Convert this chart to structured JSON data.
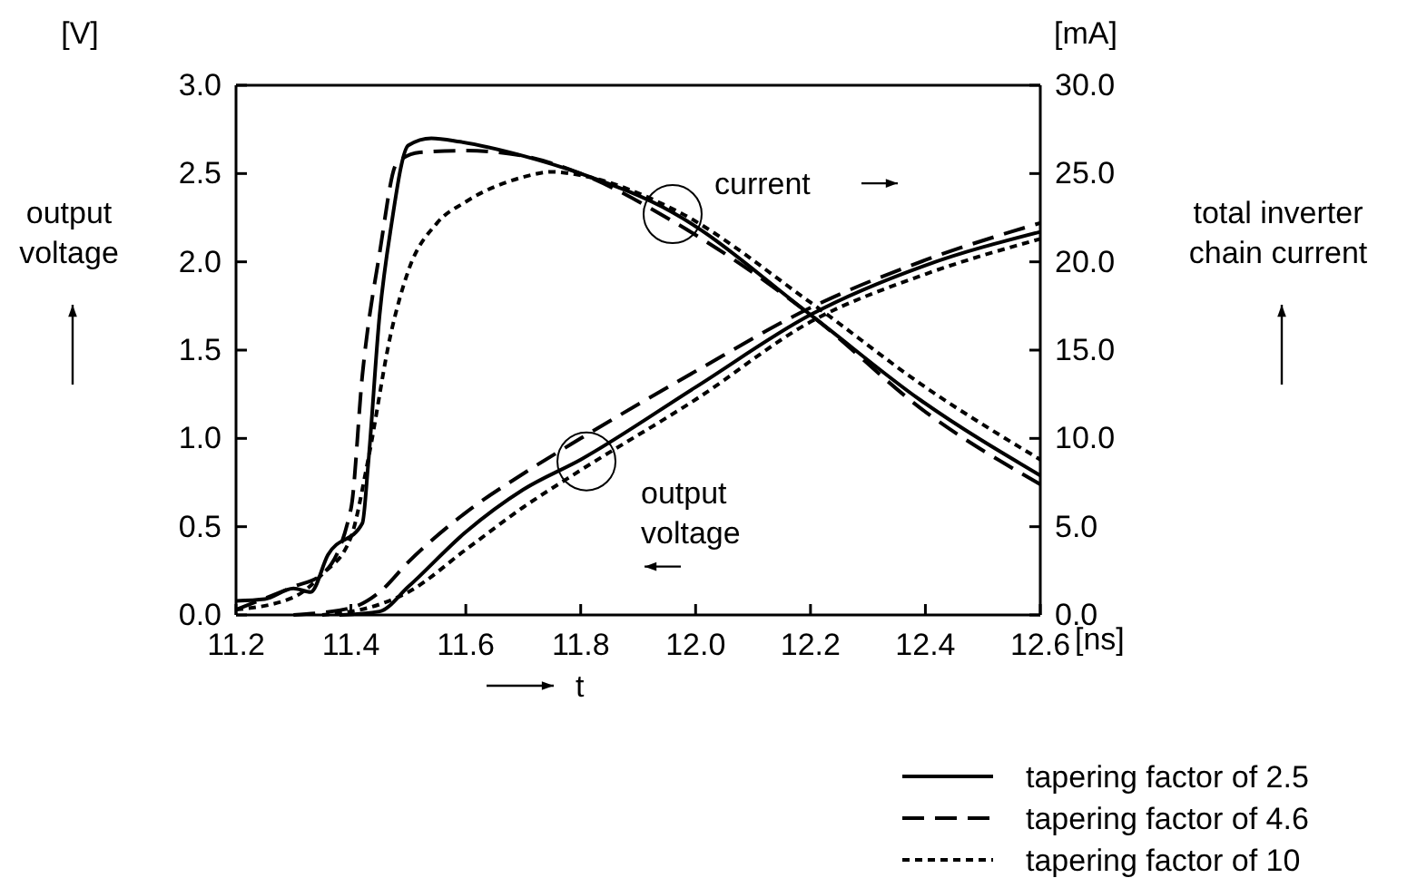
{
  "chart_data": {
    "type": "line",
    "xlabel": "t",
    "ylabel": "output voltage",
    "y2label": "total inverter chain current",
    "xlim": [
      11.2,
      12.6
    ],
    "xticks": [
      {
        "value": 11.2,
        "label": "11.2"
      },
      {
        "value": 11.4,
        "label": "11.4"
      },
      {
        "value": 11.6,
        "label": "11.6"
      },
      {
        "value": 11.8,
        "label": "11.8"
      },
      {
        "value": 12.0,
        "label": "12.0"
      },
      {
        "value": 12.2,
        "label": "12.2"
      },
      {
        "value": 12.4,
        "label": "12.4"
      },
      {
        "value": 12.6,
        "label": "12.6"
      }
    ],
    "ylim": [
      0,
      3
    ],
    "yticks": [
      {
        "value": 0,
        "label": "0.0"
      },
      {
        "value": 0.5,
        "label": "0.5"
      },
      {
        "value": 1,
        "label": "1.0"
      },
      {
        "value": 1.5,
        "label": "1.5"
      },
      {
        "value": 2,
        "label": "2.0"
      },
      {
        "value": 2.5,
        "label": "2.5"
      },
      {
        "value": 3,
        "label": "3.0"
      }
    ],
    "y2lim": [
      0,
      30
    ],
    "y2ticks": [
      {
        "value": 0,
        "label": "0.0"
      },
      {
        "value": 5,
        "label": "5.0"
      },
      {
        "value": 10,
        "label": "10.0"
      },
      {
        "value": 15,
        "label": "15.0"
      },
      {
        "value": 20,
        "label": "20.0"
      },
      {
        "value": 25,
        "label": "25.0"
      },
      {
        "value": 30,
        "label": "30.0"
      }
    ],
    "grid": false,
    "legend": "bottom right",
    "marker": "none",
    "annotations": [
      "[V]",
      "[mA]",
      "[ns]",
      {
        "text": "current",
        "x": 11.96,
        "y": 2.27
      },
      {
        "text": "output voltage",
        "x": 11.81,
        "y": 0.87
      }
    ],
    "series": [
      {
        "name": "tapering factor of 2.5",
        "color": "#000000",
        "line_style": "solid",
        "x": [
          11.38,
          11.45,
          11.5,
          11.6,
          11.7,
          11.8,
          12.0,
          12.2,
          12.4,
          12.6
        ],
        "values": [
          0,
          0.02,
          0.16,
          0.47,
          0.71,
          0.88,
          1.29,
          1.7,
          1.98,
          2.17
        ]
      },
      {
        "name": "tapering factor of 4.6",
        "color": "#000000",
        "line_style": "dashed",
        "x": [
          11.3,
          11.4,
          11.45,
          11.5,
          11.6,
          11.7,
          11.8,
          12.0,
          12.2,
          12.4,
          12.6
        ],
        "values": [
          0,
          0.04,
          0.13,
          0.3,
          0.58,
          0.8,
          1.0,
          1.38,
          1.74,
          2.01,
          2.22
        ]
      },
      {
        "name": "tapering factor of 10",
        "color": "#000000",
        "line_style": "dotted",
        "x": [
          11.35,
          11.45,
          11.5,
          11.6,
          11.7,
          11.8,
          12.0,
          12.2,
          12.4,
          12.6
        ],
        "values": [
          0,
          0.06,
          0.13,
          0.37,
          0.61,
          0.82,
          1.22,
          1.66,
          1.93,
          2.13
        ]
      },
      {
        "color": "#000000",
        "line_style": "solid",
        "axis": "y2",
        "x": [
          11.2,
          11.25,
          11.3,
          11.33,
          11.36,
          11.42,
          11.43,
          11.45,
          11.47,
          11.5,
          11.54,
          11.59,
          11.7,
          11.8,
          11.96,
          12.2,
          12.39,
          12.6
        ],
        "values": [
          0.8,
          0.9,
          1.5,
          1.3,
          3.4,
          5.2,
          8.5,
          17,
          22,
          26.6,
          27,
          26.8,
          26,
          25,
          22.8,
          17,
          12.2,
          7.9
        ]
      },
      {
        "color": "#000000",
        "line_style": "dashed",
        "axis": "y2",
        "x": [
          11.2,
          11.3,
          11.35,
          11.4,
          11.42,
          11.45,
          11.48,
          11.52,
          11.6,
          11.7,
          11.8,
          11.96,
          12.2,
          12.4,
          12.6
        ],
        "values": [
          0.3,
          1.6,
          2.3,
          6,
          13.6,
          20.5,
          25.6,
          26.2,
          26.3,
          26,
          25,
          22.3,
          17,
          11.5,
          7.4
        ]
      },
      {
        "color": "#000000",
        "line_style": "dotted",
        "axis": "y2",
        "x": [
          11.2,
          11.3,
          11.35,
          11.4,
          11.43,
          11.47,
          11.5,
          11.55,
          11.6,
          11.7,
          11.75,
          11.8,
          11.96,
          12.2,
          12.4,
          12.6
        ],
        "values": [
          0.3,
          1,
          2.3,
          4.4,
          8.8,
          16,
          19.5,
          22.2,
          23.4,
          24.8,
          25.1,
          24.9,
          23,
          17.7,
          12.9,
          8.8
        ]
      }
    ]
  }
}
